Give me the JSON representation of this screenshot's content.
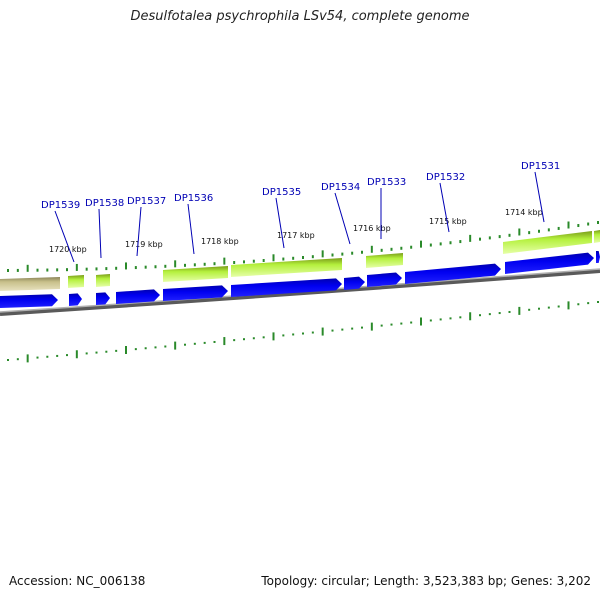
{
  "title": "Desulfotalea psychrophila LSv54, complete genome",
  "footer": {
    "accession": "Accession: NC_006138",
    "summary": "Topology: circular; Length: 3,523,383 bp; Genes: 3,202"
  },
  "colors": {
    "cds": "#0000ee",
    "feature": "#b4f03c",
    "feature_alt": "#c8c08a",
    "backbone": "#808080",
    "tick": "#2a8a2a",
    "label": "#0000b4"
  },
  "scale_labels": [
    "1720 kbp",
    "1719 kbp",
    "1718 kbp",
    "1717 kbp",
    "1716 kbp",
    "1715 kbp",
    "1714 kbp"
  ],
  "gene_labels": [
    "DP1539",
    "DP1538",
    "DP1537",
    "DP1536",
    "DP1535",
    "DP1534",
    "DP1533",
    "DP1532",
    "DP1531"
  ]
}
